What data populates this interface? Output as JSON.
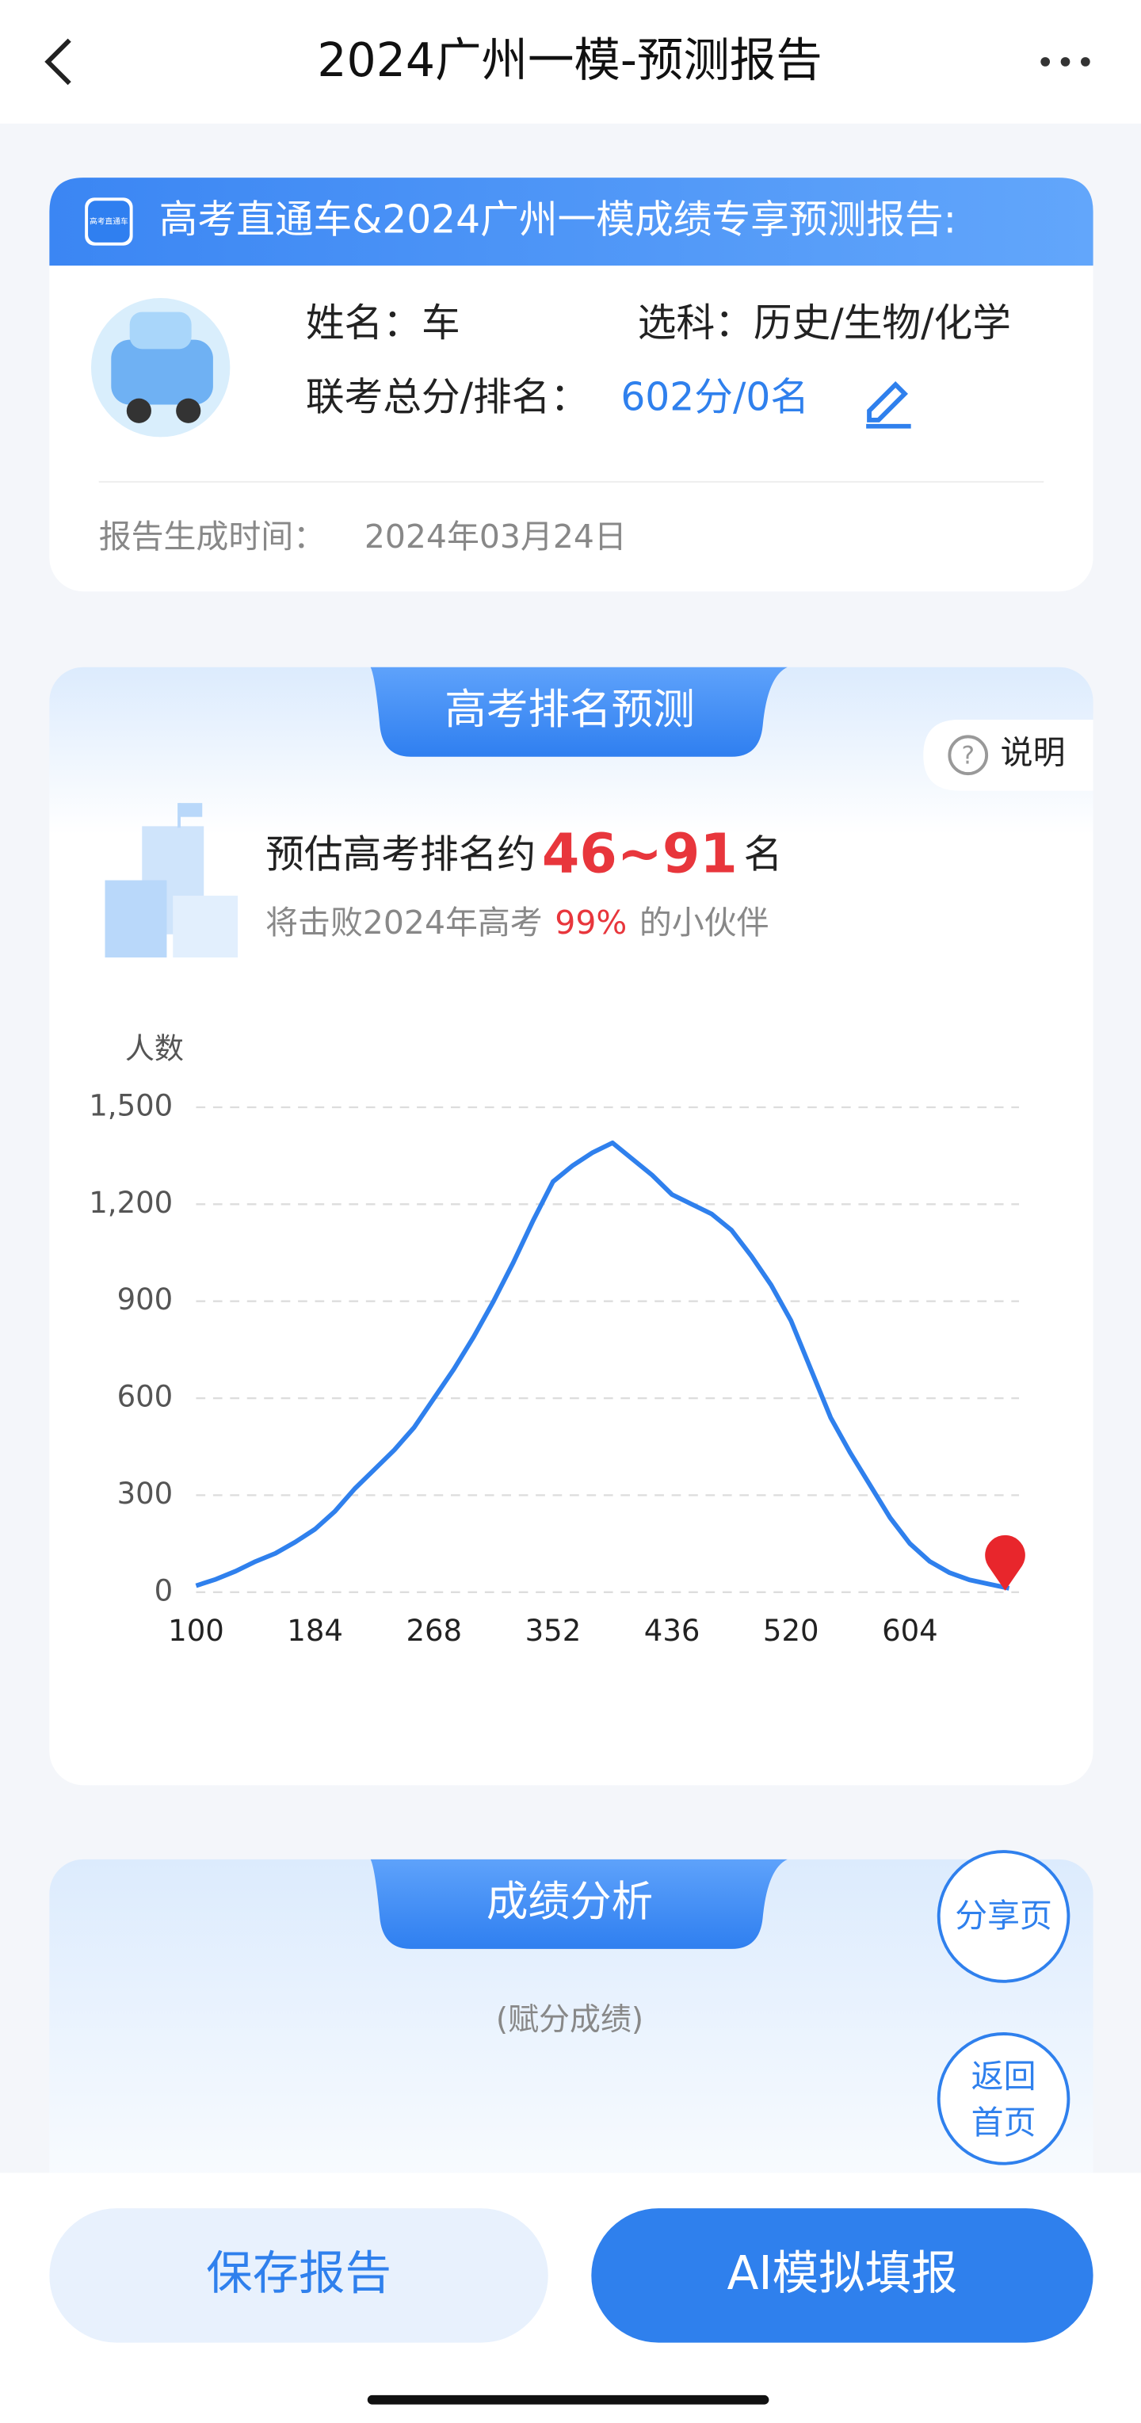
{
  "header": {
    "title": "2024广州一模-预测报告"
  },
  "report": {
    "banner": "高考直通车&2024广州一模成绩专享预测报告:",
    "logo_text": "高考直通车",
    "name_label": "姓名：",
    "name": "车",
    "subjects_label": "选科：",
    "subjects": "历史/生物/化学",
    "score_label": "联考总分/排名：",
    "score": "602分/0名",
    "time_label": "报告生成时间：",
    "time": "2024年03月24日"
  },
  "rank_section": {
    "title": "高考排名预测",
    "help": "说明",
    "estimate_prefix": "预估高考排名约",
    "estimate_range": "46~91",
    "estimate_suffix": "名",
    "beat_prefix": "将击败2024年高考",
    "beat_percent": "99%",
    "beat_suffix": "的小伙伴"
  },
  "chart_data": {
    "type": "line",
    "y_label": "人数",
    "color": "#2f80ed",
    "x": [
      100,
      114,
      128,
      142,
      156,
      170,
      184,
      198,
      212,
      226,
      240,
      254,
      268,
      282,
      296,
      310,
      324,
      338,
      352,
      366,
      380,
      394,
      408,
      422,
      436,
      450,
      464,
      478,
      492,
      506,
      520,
      534,
      548,
      562,
      576,
      590,
      604,
      618,
      632,
      646,
      660,
      674
    ],
    "values": [
      20,
      40,
      65,
      95,
      120,
      155,
      195,
      250,
      320,
      380,
      440,
      510,
      600,
      690,
      790,
      900,
      1020,
      1150,
      1270,
      1320,
      1360,
      1390,
      1340,
      1290,
      1230,
      1200,
      1170,
      1120,
      1040,
      950,
      840,
      690,
      540,
      430,
      330,
      230,
      150,
      95,
      60,
      38,
      25,
      12
    ],
    "xlim": [
      100,
      681
    ],
    "xticks": [
      100,
      184,
      268,
      352,
      436,
      520,
      604
    ],
    "ylim": [
      0,
      1500
    ],
    "yticks": [
      0,
      300,
      600,
      900,
      {
        "value": 1200,
        "label": "1,200"
      },
      {
        "value": 1500,
        "label": "1,500"
      }
    ],
    "grid": true
  },
  "analysis_section": {
    "title": "成绩分析",
    "subtitle": "(赋分成绩)"
  },
  "float_buttons": {
    "share": "分享页",
    "home": [
      "返回",
      "首页"
    ]
  },
  "actions": {
    "save": "保存报告",
    "ai": "AI模拟填报"
  }
}
